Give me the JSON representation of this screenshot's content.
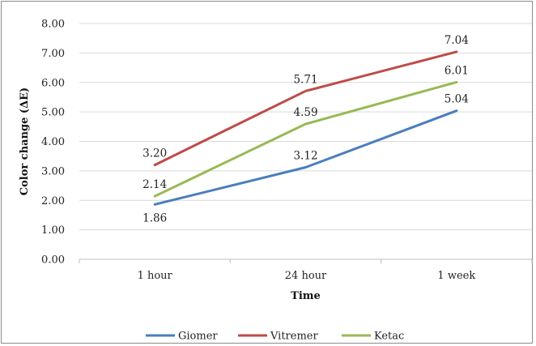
{
  "chart_data": {
    "type": "line",
    "categories": [
      "1 hour",
      "24 hour",
      "1 week"
    ],
    "series": [
      {
        "name": "Giomer",
        "values": [
          1.86,
          3.12,
          5.04
        ],
        "color": "#4a7ebb"
      },
      {
        "name": "Vitremer",
        "values": [
          3.2,
          5.71,
          7.04
        ],
        "color": "#be4b48"
      },
      {
        "name": "Ketac",
        "values": [
          2.14,
          4.59,
          6.01
        ],
        "color": "#98b954"
      }
    ],
    "data_labels": {
      "Giomer": [
        "1.86",
        "3.12",
        "5.04"
      ],
      "Vitremer": [
        "3.20",
        "5.71",
        "7.04"
      ],
      "Ketac": [
        "2.14",
        "4.59",
        "6.01"
      ]
    },
    "xlabel": "Time",
    "ylabel": "Color change (ΔE)",
    "ylim": [
      0,
      8
    ],
    "yticks": [
      "0.00",
      "1.00",
      "2.00",
      "3.00",
      "4.00",
      "5.00",
      "6.00",
      "7.00",
      "8.00"
    ],
    "grid": true,
    "legend": "bottom",
    "gridline_color": "#d9d9d9"
  }
}
